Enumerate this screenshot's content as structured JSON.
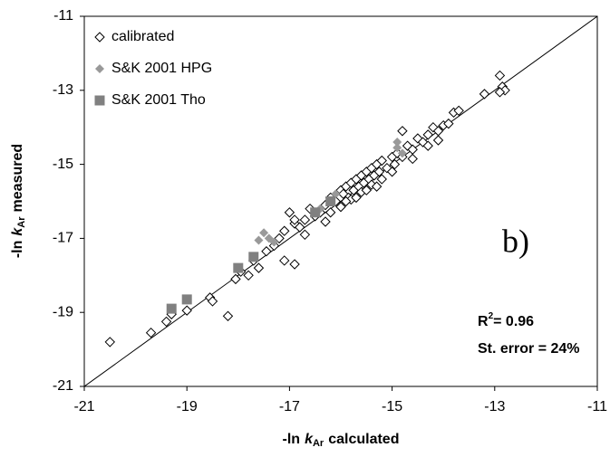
{
  "chart_data": {
    "type": "scatter",
    "xlabel": {
      "pre": "-ln",
      "var": "k",
      "sub": "Ar",
      "post": "calculated"
    },
    "ylabel": {
      "pre": "-ln",
      "var": "k",
      "sub": "Ar",
      "post": "measured"
    },
    "annotations": {
      "panel": "b)",
      "r2": {
        "base": "R",
        "sup": "2",
        "rest": "= 0.96"
      },
      "error": "St. error = 24%"
    },
    "xlim": [
      -21,
      -11
    ],
    "ylim": [
      -21,
      -11
    ],
    "xticks": [
      -21,
      -19,
      -17,
      -15,
      -13,
      -11
    ],
    "yticks": [
      -21,
      -19,
      -17,
      -15,
      -13,
      -11
    ],
    "legend": "top-left",
    "identity_line": true,
    "series": [
      {
        "name": "calibrated",
        "color": "#000000",
        "marker": "diamond-open",
        "x": [
          -20.5,
          -19.7,
          -19.4,
          -19.3,
          -19.0,
          -18.55,
          -18.5,
          -18.2,
          -18.05,
          -17.95,
          -17.8,
          -17.7,
          -17.6,
          -17.45,
          -17.3,
          -17.2,
          -17.1,
          -16.9,
          -17.0,
          -16.9,
          -16.8,
          -16.7,
          -16.6,
          -16.5,
          -16.4,
          -16.3,
          -16.2,
          -16.1,
          -16.0,
          -15.95,
          -15.9,
          -15.85,
          -15.8,
          -15.75,
          -15.7,
          -15.65,
          -15.6,
          -15.55,
          -15.5,
          -15.45,
          -15.4,
          -15.35,
          -15.3,
          -15.25,
          -15.2,
          -15.1,
          -15.0,
          -14.95,
          -14.9,
          -14.8,
          -14.7,
          -14.6,
          -14.5,
          -14.4,
          -14.3,
          -14.2,
          -14.1,
          -14.0,
          -13.9,
          -13.8,
          -13.7,
          -15.8,
          -15.6,
          -15.4,
          -15.2,
          -15.0,
          -16.0,
          -16.3,
          -15.9,
          -14.6,
          -14.3,
          -16.2,
          -15.7,
          -13.2,
          -12.9,
          -12.85,
          -12.8,
          -12.9,
          -17.1,
          -16.9,
          -14.8,
          -16.7,
          -15.3,
          -14.1,
          -15.5
        ],
        "values": [
          -19.8,
          -19.55,
          -19.25,
          -19.05,
          -18.95,
          -18.6,
          -18.7,
          -19.1,
          -18.1,
          -17.9,
          -18.0,
          -17.6,
          -17.8,
          -17.35,
          -17.2,
          -17.0,
          -16.8,
          -16.6,
          -16.3,
          -16.5,
          -16.7,
          -16.5,
          -16.2,
          -16.4,
          -16.3,
          -16.1,
          -15.9,
          -16.0,
          -15.7,
          -15.8,
          -15.6,
          -15.9,
          -15.5,
          -15.7,
          -15.4,
          -15.6,
          -15.3,
          -15.5,
          -15.2,
          -15.4,
          -15.1,
          -15.3,
          -15.0,
          -15.2,
          -14.9,
          -15.1,
          -14.8,
          -15.0,
          -14.7,
          -14.8,
          -14.5,
          -14.6,
          -14.3,
          -14.4,
          -14.2,
          -14.0,
          -14.1,
          -13.95,
          -13.9,
          -13.6,
          -13.55,
          -15.95,
          -15.75,
          -15.55,
          -15.4,
          -15.2,
          -16.15,
          -16.55,
          -16.0,
          -14.85,
          -14.5,
          -16.3,
          -15.9,
          -13.1,
          -12.6,
          -12.9,
          -13.0,
          -13.05,
          -17.6,
          -17.7,
          -14.1,
          -16.9,
          -15.6,
          -14.35,
          -15.7
        ]
      },
      {
        "name": "S&K 2001 HPG",
        "color": "#999999",
        "marker": "diamond",
        "x": [
          -17.6,
          -17.5,
          -17.4,
          -17.3,
          -16.4,
          -16.1,
          -14.9,
          -14.8,
          -14.9
        ],
        "values": [
          -17.05,
          -16.85,
          -17.0,
          -17.1,
          -16.2,
          -15.8,
          -14.55,
          -14.7,
          -14.4
        ]
      },
      {
        "name": "S&K 2001 Tho",
        "color": "#808080",
        "marker": "square",
        "x": [
          -19.3,
          -19.0,
          -18.0,
          -17.7,
          -16.5,
          -16.2
        ],
        "values": [
          -18.9,
          -18.65,
          -17.8,
          -17.5,
          -16.3,
          -16.0
        ]
      }
    ]
  }
}
